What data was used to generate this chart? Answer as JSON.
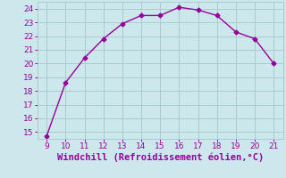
{
  "x": [
    9,
    10,
    11,
    12,
    13,
    14,
    15,
    16,
    17,
    18,
    19,
    20,
    21
  ],
  "y": [
    14.7,
    18.6,
    20.4,
    21.8,
    22.9,
    23.5,
    23.5,
    24.1,
    23.9,
    23.5,
    22.3,
    21.8,
    20.0
  ],
  "line_color": "#990099",
  "marker": "D",
  "marker_size": 2.5,
  "bg_color": "#cce8ec",
  "grid_color": "#aacccc",
  "xlabel": "Windchill (Refroidissement éolien,°C)",
  "xlabel_color": "#990099",
  "xlabel_fontsize": 7.5,
  "tick_color": "#990099",
  "tick_fontsize": 6.5,
  "xlim": [
    8.5,
    21.5
  ],
  "ylim": [
    14.5,
    24.5
  ],
  "yticks": [
    15,
    16,
    17,
    18,
    19,
    20,
    21,
    22,
    23,
    24
  ],
  "xticks": [
    9,
    10,
    11,
    12,
    13,
    14,
    15,
    16,
    17,
    18,
    19,
    20,
    21
  ]
}
